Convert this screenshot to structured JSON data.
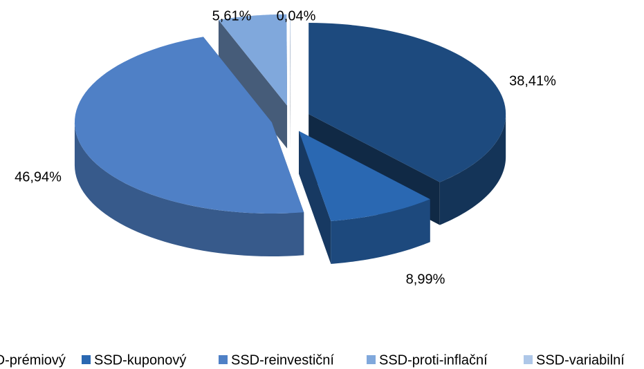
{
  "chart_data": {
    "type": "pie",
    "categories": [
      "SSD-prémiový",
      "SSD-kuponový",
      "SSD-reinvestiční",
      "SSD-proti-inflační",
      "SSD-variabilní"
    ],
    "values": [
      38.41,
      8.99,
      46.94,
      5.61,
      0.04
    ],
    "value_labels": [
      "38,41%",
      "8,99%",
      "46,94%",
      "5,61%",
      "0,04%"
    ],
    "colors": [
      "#1d4a7e",
      "#2a68b2",
      "#4f80c6",
      "#80a8dc",
      "#aec7e8"
    ],
    "legend": "bottom"
  }
}
